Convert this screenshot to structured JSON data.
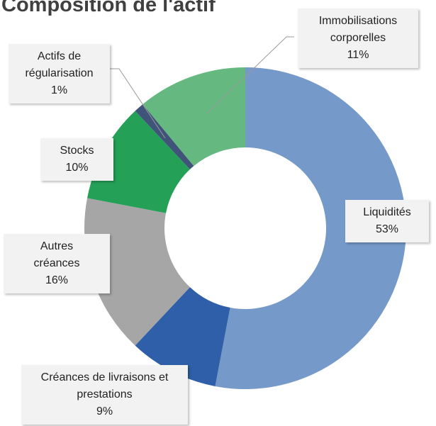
{
  "chart_data": {
    "type": "pie",
    "title": "Composition de l'actif",
    "categories": [
      "Liquidités",
      "Créances de livraisons et prestations",
      "Autres créances",
      "Stocks",
      "Actifs de régularisation",
      "Immobilisations corporelles"
    ],
    "values": [
      53,
      9,
      16,
      10,
      1,
      11
    ],
    "value_labels": [
      "53%",
      "9%",
      "16%",
      "10%",
      "1%",
      "11%"
    ],
    "colors": [
      "#7599c9",
      "#2f5fa8",
      "#a6a6a6",
      "#25a057",
      "#40547a",
      "#64b880"
    ]
  }
}
